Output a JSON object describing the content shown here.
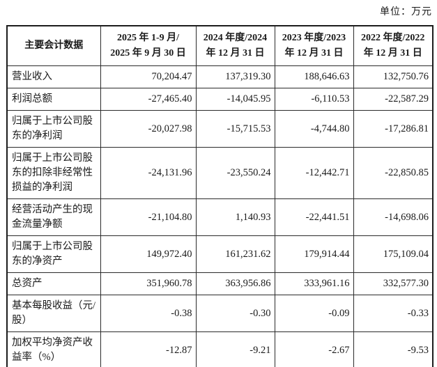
{
  "unit_label": "单位：万元",
  "table": {
    "header": {
      "label": "主要会计数据",
      "periods": [
        {
          "text": "2025 年 1-9 月/\n2025 年 9 月 30 日"
        },
        {
          "text": "2024 年度/2024\n年 12 月 31 日"
        },
        {
          "text": "2023 年度/2023\n年 12 月 31 日"
        },
        {
          "text": "2022 年度/2022\n年 12 月 31 日"
        }
      ]
    },
    "rows": [
      {
        "label": "营业收入",
        "values": [
          "70,204.47",
          "137,319.30",
          "188,646.63",
          "132,750.76"
        ]
      },
      {
        "label": "利润总额",
        "values": [
          "-27,465.40",
          "-14,045.95",
          "-6,110.53",
          "-22,587.29"
        ]
      },
      {
        "label": "归属于上市公司股东的净利润",
        "values": [
          "-20,027.98",
          "-15,715.53",
          "-4,744.80",
          "-17,286.81"
        ]
      },
      {
        "label": "归属于上市公司股东的扣除非经常性损益的净利润",
        "values": [
          "-24,131.96",
          "-23,550.24",
          "-12,442.71",
          "-22,850.85"
        ]
      },
      {
        "label": "经营活动产生的现金流量净额",
        "values": [
          "-21,104.80",
          "1,140.93",
          "-22,441.51",
          "-14,698.06"
        ]
      },
      {
        "label": "归属于上市公司股东的净资产",
        "values": [
          "149,972.40",
          "161,231.62",
          "179,914.44",
          "175,109.04"
        ]
      },
      {
        "label": "总资产",
        "values": [
          "351,960.78",
          "363,956.86",
          "333,961.16",
          "332,577.30"
        ]
      },
      {
        "label": "基本每股收益（元/股）",
        "values": [
          "-0.38",
          "-0.30",
          "-0.09",
          "-0.33"
        ]
      },
      {
        "label": "加权平均净资产收益率（%）",
        "values": [
          "-12.87",
          "-9.21",
          "-2.67",
          "-9.53"
        ]
      }
    ]
  }
}
